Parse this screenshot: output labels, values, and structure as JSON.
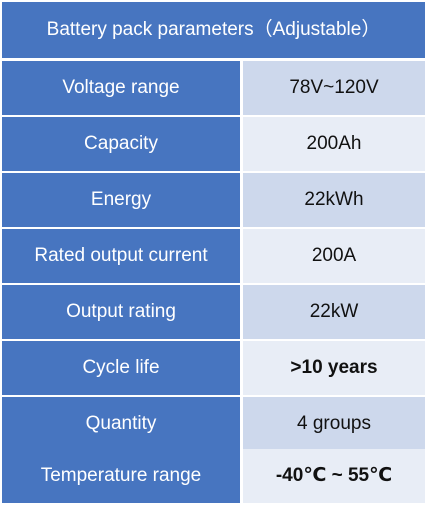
{
  "table": {
    "title": "Battery pack parameters（Adjustable）",
    "rows": [
      {
        "label": "Voltage range",
        "value": "78V~120V"
      },
      {
        "label": "Capacity",
        "value": "200Ah"
      },
      {
        "label": "Energy",
        "value": "22kWh"
      },
      {
        "label": "Rated output current",
        "value": "200A"
      },
      {
        "label": "Output rating",
        "value": "22kW"
      },
      {
        "label": "Cycle life",
        "value": ">10 years"
      },
      {
        "label": "Quantity",
        "value": "4 groups"
      },
      {
        "label": "Temperature range",
        "value": "-40℃ ~ 55℃"
      }
    ]
  }
}
